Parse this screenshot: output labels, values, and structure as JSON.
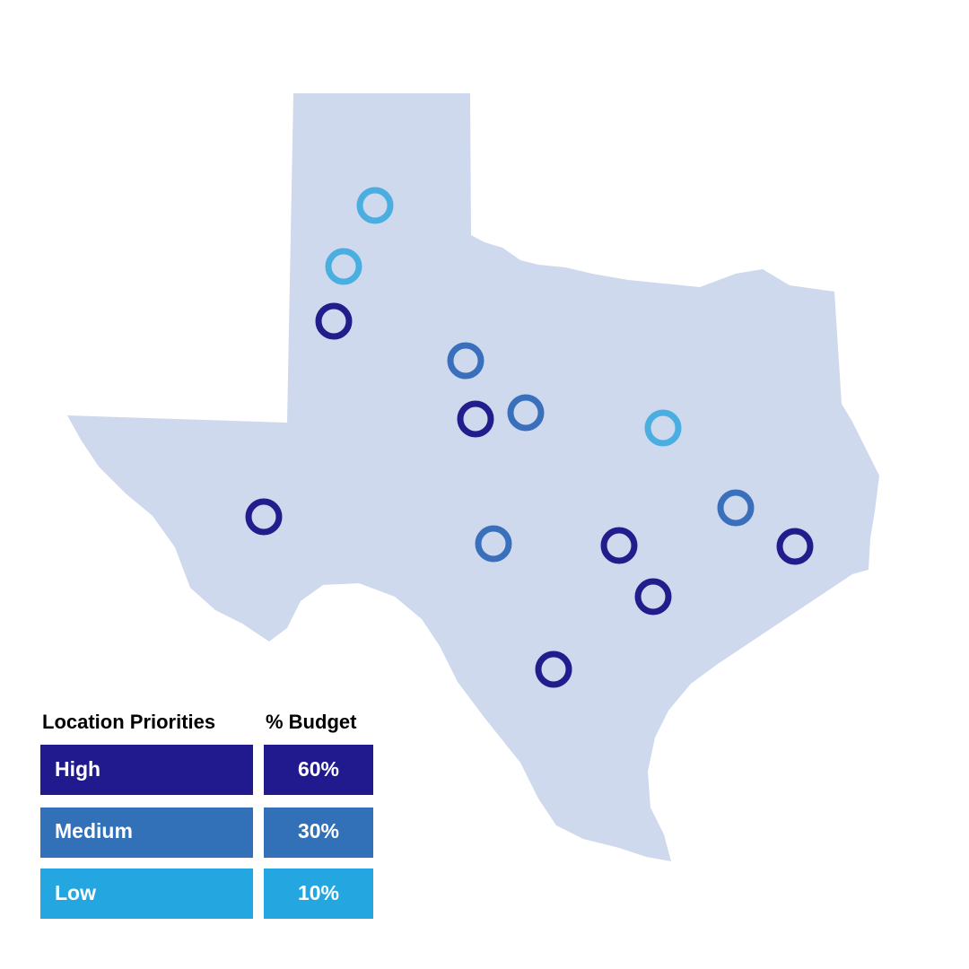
{
  "legend": {
    "header": {
      "priority": "Location Priorities",
      "budget": "% Budget"
    },
    "rows": [
      {
        "priority": "High",
        "budget": "60%"
      },
      {
        "priority": "Medium",
        "budget": "30%"
      },
      {
        "priority": "Low",
        "budget": "10%"
      }
    ]
  }
}
